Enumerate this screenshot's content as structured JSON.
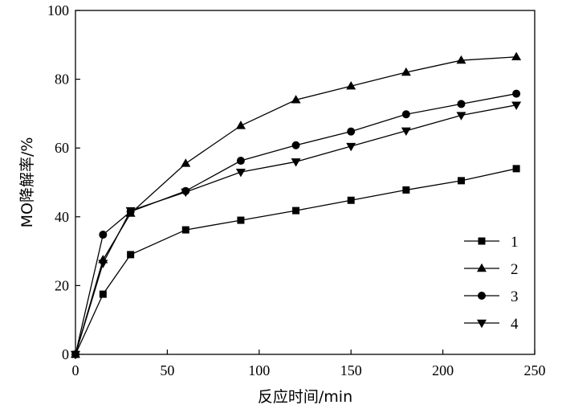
{
  "chart_data": {
    "type": "line",
    "xlabel": "反应时间/min",
    "ylabel": "MO降解率/%",
    "xlim": [
      0,
      250
    ],
    "ylim": [
      0,
      100
    ],
    "xticks": [
      0,
      50,
      100,
      150,
      200,
      250
    ],
    "yticks": [
      0,
      20,
      40,
      60,
      80,
      100
    ],
    "grid": false,
    "legend_position": "bottom-right",
    "series": [
      {
        "name": "1",
        "marker": "square",
        "x": [
          0,
          15,
          30,
          60,
          90,
          120,
          150,
          180,
          210,
          240
        ],
        "y": [
          0,
          17.5,
          29,
          36.2,
          39,
          41.8,
          44.8,
          47.8,
          50.5,
          54
        ]
      },
      {
        "name": "2",
        "marker": "triangle-up",
        "x": [
          0,
          15,
          30,
          60,
          90,
          120,
          150,
          180,
          210,
          240
        ],
        "y": [
          0,
          27.5,
          41,
          55.5,
          66.5,
          74,
          78,
          82,
          85.5,
          86.5
        ]
      },
      {
        "name": "3",
        "marker": "circle",
        "x": [
          0,
          15,
          30,
          60,
          90,
          120,
          150,
          180,
          210,
          240
        ],
        "y": [
          0,
          34.8,
          41.5,
          47.5,
          56.3,
          60.8,
          64.8,
          69.8,
          72.8,
          75.8
        ]
      },
      {
        "name": "4",
        "marker": "triangle-down",
        "x": [
          0,
          15,
          30,
          60,
          90,
          120,
          150,
          180,
          210,
          240
        ],
        "y": [
          0,
          26.5,
          41.8,
          47.2,
          53,
          56,
          60.5,
          65,
          69.5,
          72.5
        ]
      }
    ]
  }
}
